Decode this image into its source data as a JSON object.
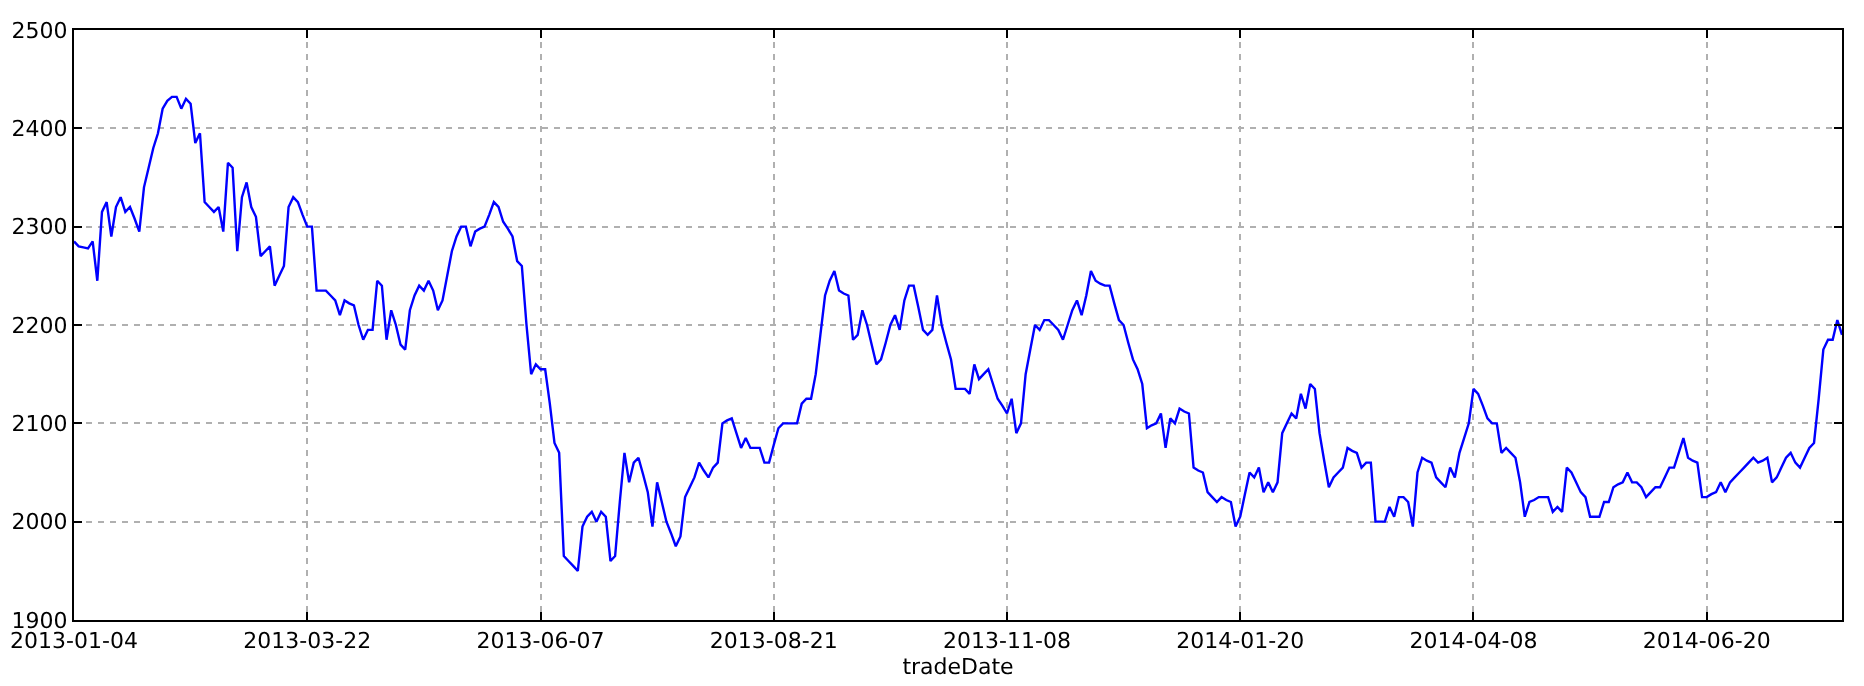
{
  "chart_data": {
    "type": "line",
    "xlabel": "tradeDate",
    "categories": [
      "2013-01-04",
      null,
      null,
      null,
      null,
      null,
      null,
      null,
      null,
      null,
      null,
      null,
      null,
      null,
      null,
      null,
      null,
      null,
      null,
      null,
      null,
      null,
      null,
      null,
      null,
      null,
      null,
      null,
      null,
      null,
      null,
      null,
      null,
      null,
      null,
      null,
      null,
      null,
      null,
      null,
      null,
      null,
      null,
      null,
      null,
      null,
      null,
      null,
      null,
      null,
      "2013-03-22",
      null,
      null,
      null,
      null,
      null,
      null,
      null,
      null,
      null,
      null,
      null,
      null,
      null,
      null,
      null,
      null,
      null,
      null,
      null,
      null,
      null,
      null,
      null,
      null,
      null,
      null,
      null,
      null,
      null,
      null,
      null,
      null,
      null,
      null,
      null,
      null,
      null,
      null,
      null,
      null,
      null,
      null,
      null,
      null,
      null,
      null,
      null,
      null,
      null,
      "2013-06-07",
      null,
      null,
      null,
      null,
      null,
      null,
      null,
      null,
      null,
      null,
      null,
      null,
      null,
      null,
      null,
      null,
      null,
      null,
      null,
      null,
      null,
      null,
      null,
      null,
      null,
      null,
      null,
      null,
      null,
      null,
      null,
      null,
      null,
      null,
      null,
      null,
      null,
      null,
      null,
      null,
      null,
      null,
      null,
      null,
      null,
      null,
      null,
      null,
      null,
      "2013-08-21",
      null,
      null,
      null,
      null,
      null,
      null,
      null,
      null,
      null,
      null,
      null,
      null,
      null,
      null,
      null,
      null,
      null,
      null,
      null,
      null,
      null,
      null,
      null,
      null,
      null,
      null,
      null,
      null,
      null,
      null,
      null,
      null,
      null,
      null,
      null,
      null,
      null,
      null,
      null,
      null,
      null,
      null,
      null,
      null,
      null,
      null,
      null,
      null,
      null,
      "2013-11-08",
      null,
      null,
      null,
      null,
      null,
      null,
      null,
      null,
      null,
      null,
      null,
      null,
      null,
      null,
      null,
      null,
      null,
      null,
      null,
      null,
      null,
      null,
      null,
      null,
      null,
      null,
      null,
      null,
      null,
      null,
      null,
      null,
      null,
      null,
      null,
      null,
      null,
      null,
      null,
      null,
      null,
      null,
      null,
      null,
      null,
      null,
      null,
      null,
      null,
      "2014-01-20",
      null,
      null,
      null,
      null,
      null,
      null,
      null,
      null,
      null,
      null,
      null,
      null,
      null,
      null,
      null,
      null,
      null,
      null,
      null,
      null,
      null,
      null,
      null,
      null,
      null,
      null,
      null,
      null,
      null,
      null,
      null,
      null,
      null,
      null,
      null,
      null,
      null,
      null,
      null,
      null,
      null,
      null,
      null,
      null,
      null,
      null,
      null,
      null,
      null,
      "2014-04-08",
      null,
      null,
      null,
      null,
      null,
      null,
      null,
      null,
      null,
      null,
      null,
      null,
      null,
      null,
      null,
      null,
      null,
      null,
      null,
      null,
      null,
      null,
      null,
      null,
      null,
      null,
      null,
      null,
      null,
      null,
      null,
      null,
      null,
      null,
      null,
      null,
      null,
      null,
      null,
      null,
      null,
      null,
      null,
      null,
      null,
      null,
      null,
      null,
      null,
      "2014-06-20",
      null,
      null,
      null,
      null,
      null,
      null,
      null,
      null,
      null,
      null,
      null,
      null,
      null,
      null,
      null,
      null,
      null,
      null,
      null,
      null,
      null,
      null,
      null,
      null,
      null,
      null,
      null,
      null,
      null
    ],
    "ylim": [
      1900,
      2500
    ],
    "yticks": [
      1900,
      2000,
      2100,
      2200,
      2300,
      2400,
      2500
    ],
    "grid": true,
    "marker": "none",
    "line_style": "solid",
    "series": [
      {
        "color": "#0000ff",
        "values": [
          2285,
          2280,
          2279,
          2278,
          2285,
          2245,
          2315,
          2325,
          2290,
          2320,
          2330,
          2315,
          2320,
          2308,
          2295,
          2340,
          2360,
          2380,
          2395,
          2420,
          2428,
          2432,
          2432,
          2420,
          2430,
          2425,
          2385,
          2395,
          2325,
          2320,
          2315,
          2320,
          2295,
          2365,
          2360,
          2275,
          2330,
          2345,
          2320,
          2310,
          2270,
          2275,
          2280,
          2240,
          2250,
          2260,
          2320,
          2330,
          2325,
          2312,
          2300,
          2300,
          2235,
          2235,
          2235,
          2230,
          2225,
          2210,
          2225,
          2222,
          2220,
          2200,
          2185,
          2195,
          2195,
          2245,
          2240,
          2185,
          2215,
          2200,
          2180,
          2175,
          2215,
          2230,
          2240,
          2235,
          2245,
          2235,
          2215,
          2225,
          2250,
          2275,
          2290,
          2300,
          2300,
          2280,
          2295,
          2298,
          2300,
          2312,
          2325,
          2320,
          2305,
          2298,
          2290,
          2265,
          2260,
          2200,
          2150,
          2160,
          2155,
          2155,
          2120,
          2080,
          2070,
          1965,
          1960,
          1955,
          1950,
          1995,
          2005,
          2010,
          2000,
          2010,
          2005,
          1960,
          1965,
          2020,
          2070,
          2040,
          2060,
          2065,
          2048,
          2030,
          1995,
          2040,
          2020,
          2000,
          1988,
          1975,
          1985,
          2025,
          2035,
          2045,
          2060,
          2052,
          2045,
          2055,
          2060,
          2100,
          2103,
          2105,
          2090,
          2075,
          2085,
          2075,
          2075,
          2075,
          2060,
          2060,
          2078,
          2095,
          2100,
          2100,
          2100,
          2100,
          2120,
          2125,
          2125,
          2150,
          2190,
          2230,
          2245,
          2255,
          2235,
          2232,
          2230,
          2185,
          2190,
          2215,
          2200,
          2180,
          2160,
          2165,
          2182,
          2200,
          2210,
          2195,
          2225,
          2240,
          2240,
          2218,
          2195,
          2190,
          2195,
          2230,
          2200,
          2182,
          2165,
          2135,
          2135,
          2135,
          2130,
          2160,
          2145,
          2150,
          2155,
          2140,
          2125,
          2118,
          2110,
          2125,
          2090,
          2100,
          2150,
          2175,
          2200,
          2195,
          2205,
          2205,
          2200,
          2195,
          2185,
          2200,
          2215,
          2225,
          2210,
          2230,
          2255,
          2245,
          2242,
          2240,
          2240,
          2222,
          2205,
          2200,
          2182,
          2165,
          2155,
          2140,
          2095,
          2098,
          2100,
          2110,
          2075,
          2105,
          2100,
          2115,
          2112,
          2110,
          2055,
          2052,
          2050,
          2030,
          2025,
          2020,
          2025,
          2022,
          2020,
          1995,
          2005,
          2028,
          2050,
          2045,
          2055,
          2030,
          2040,
          2030,
          2040,
          2090,
          2100,
          2110,
          2105,
          2130,
          2115,
          2140,
          2135,
          2090,
          2062,
          2035,
          2045,
          2050,
          2055,
          2075,
          2072,
          2070,
          2055,
          2060,
          2060,
          2000,
          2000,
          2000,
          2015,
          2005,
          2025,
          2025,
          2020,
          1995,
          2050,
          2065,
          2062,
          2060,
          2045,
          2040,
          2035,
          2055,
          2045,
          2070,
          2085,
          2100,
          2135,
          2130,
          2118,
          2105,
          2100,
          2100,
          2070,
          2075,
          2070,
          2065,
          2040,
          2005,
          2020,
          2022,
          2025,
          2025,
          2025,
          2010,
          2015,
          2010,
          2055,
          2050,
          2040,
          2030,
          2025,
          2005,
          2005,
          2005,
          2020,
          2020,
          2035,
          2038,
          2040,
          2050,
          2040,
          2040,
          2035,
          2025,
          2030,
          2035,
          2035,
          2045,
          2055,
          2055,
          2070,
          2085,
          2065,
          2062,
          2060,
          2025,
          2025,
          2028,
          2030,
          2040,
          2030,
          2040,
          2045,
          2050,
          2055,
          2060,
          2065,
          2060,
          2062,
          2065,
          2040,
          2045,
          2055,
          2065,
          2070,
          2060,
          2055,
          2065,
          2075,
          2080,
          2125,
          2175,
          2185,
          2185,
          2205,
          2190
        ]
      }
    ]
  }
}
